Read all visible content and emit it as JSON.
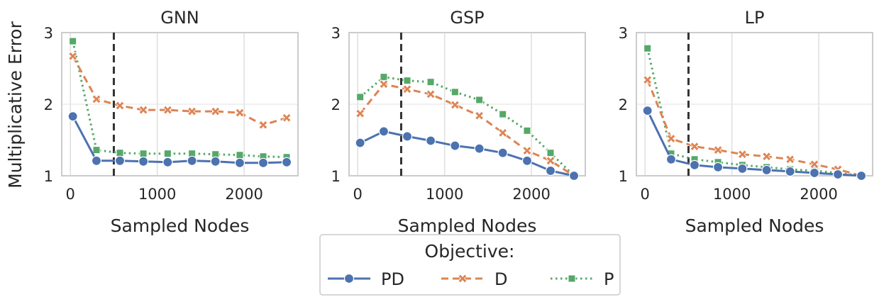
{
  "figure": {
    "ylabel": "Multiplicative Error",
    "legend_title": "Objective:",
    "legend_placement": "bottom-center",
    "grid": true,
    "series_styles": [
      {
        "name": "PD",
        "color": "#4c72b0",
        "marker": "circle",
        "dash": "solid"
      },
      {
        "name": "D",
        "color": "#dd8452",
        "marker": "x",
        "dash": "dashed"
      },
      {
        "name": "P",
        "color": "#55a868",
        "marker": "square",
        "dash": "dotted"
      }
    ]
  },
  "chart_data": [
    {
      "type": "line",
      "title": "GNN",
      "xlabel": "Sampled Nodes",
      "ylabel": "Multiplicative Error",
      "xlim": [
        -100,
        2620
      ],
      "ylim": [
        1,
        3
      ],
      "xticks": [
        0,
        1000,
        2000
      ],
      "yticks": [
        1,
        2,
        3
      ],
      "vline": 500,
      "x": [
        28,
        300,
        570,
        840,
        1120,
        1400,
        1670,
        1950,
        2220,
        2490
      ],
      "series": [
        {
          "name": "PD",
          "values": [
            1.83,
            1.21,
            1.21,
            1.2,
            1.19,
            1.21,
            1.2,
            1.18,
            1.18,
            1.19
          ]
        },
        {
          "name": "D",
          "values": [
            2.67,
            2.07,
            1.98,
            1.92,
            1.92,
            1.9,
            1.9,
            1.88,
            1.71,
            1.81
          ]
        },
        {
          "name": "P",
          "values": [
            2.88,
            1.36,
            1.32,
            1.31,
            1.31,
            1.31,
            1.3,
            1.29,
            1.27,
            1.26
          ]
        }
      ]
    },
    {
      "type": "line",
      "title": "GSP",
      "xlabel": "Sampled Nodes",
      "ylabel": "",
      "xlim": [
        -100,
        2620
      ],
      "ylim": [
        1,
        3
      ],
      "xticks": [
        0,
        1000,
        2000
      ],
      "yticks": [
        1,
        2,
        3
      ],
      "vline": 500,
      "x": [
        28,
        300,
        570,
        840,
        1120,
        1400,
        1670,
        1950,
        2220,
        2490
      ],
      "series": [
        {
          "name": "PD",
          "values": [
            1.46,
            1.62,
            1.55,
            1.49,
            1.42,
            1.38,
            1.32,
            1.21,
            1.07,
            1.0
          ]
        },
        {
          "name": "D",
          "values": [
            1.87,
            2.28,
            2.21,
            2.14,
            1.99,
            1.84,
            1.6,
            1.35,
            1.21,
            1.0
          ]
        },
        {
          "name": "P",
          "values": [
            2.1,
            2.38,
            2.33,
            2.31,
            2.17,
            2.06,
            1.86,
            1.63,
            1.32,
            1.0
          ]
        }
      ]
    },
    {
      "type": "line",
      "title": "LP",
      "xlabel": "Sampled Nodes",
      "ylabel": "",
      "xlim": [
        -100,
        2620
      ],
      "ylim": [
        1,
        3
      ],
      "xticks": [
        0,
        1000,
        2000
      ],
      "yticks": [
        1,
        2,
        3
      ],
      "vline": 500,
      "x": [
        28,
        300,
        570,
        840,
        1120,
        1400,
        1670,
        1950,
        2220,
        2490
      ],
      "series": [
        {
          "name": "PD",
          "values": [
            1.91,
            1.23,
            1.15,
            1.12,
            1.1,
            1.08,
            1.06,
            1.04,
            1.02,
            1.0
          ]
        },
        {
          "name": "D",
          "values": [
            2.34,
            1.52,
            1.41,
            1.36,
            1.3,
            1.27,
            1.23,
            1.16,
            1.09,
            1.0
          ]
        },
        {
          "name": "P",
          "values": [
            2.78,
            1.31,
            1.23,
            1.19,
            1.15,
            1.12,
            1.09,
            1.07,
            1.04,
            1.0
          ]
        }
      ]
    }
  ]
}
